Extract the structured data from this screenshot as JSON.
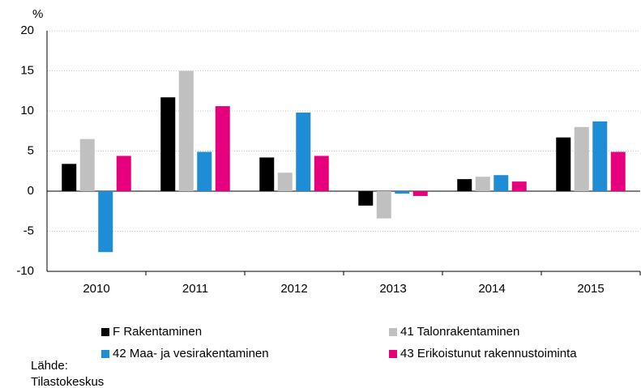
{
  "chart_data": {
    "type": "bar",
    "y_label": "%",
    "categories": [
      "2010",
      "2011",
      "2012",
      "2013",
      "2014",
      "2015"
    ],
    "series": [
      {
        "name": "F Rakentaminen",
        "color": "#000000",
        "values": [
          3.4,
          11.7,
          4.2,
          -1.8,
          1.5,
          6.7
        ]
      },
      {
        "name": "41 Talonrakentaminen",
        "color": "#c0c0c0",
        "values": [
          6.5,
          15.0,
          2.3,
          -3.4,
          1.8,
          8.0
        ]
      },
      {
        "name": "42 Maa- ja vesirakentaminen",
        "color": "#1f8dd6",
        "values": [
          -7.6,
          4.9,
          9.8,
          -0.3,
          2.0,
          8.7
        ]
      },
      {
        "name": "43 Erikoistunut rakennustoiminta",
        "color": "#e6007e",
        "values": [
          4.4,
          10.6,
          4.4,
          -0.6,
          1.2,
          4.9
        ]
      }
    ],
    "ylim": [
      -10,
      20
    ],
    "yticks": [
      -10,
      -5,
      0,
      5,
      10,
      15,
      20
    ],
    "grid": true,
    "source": [
      "Lähde:",
      "Tilastokeskus"
    ]
  }
}
